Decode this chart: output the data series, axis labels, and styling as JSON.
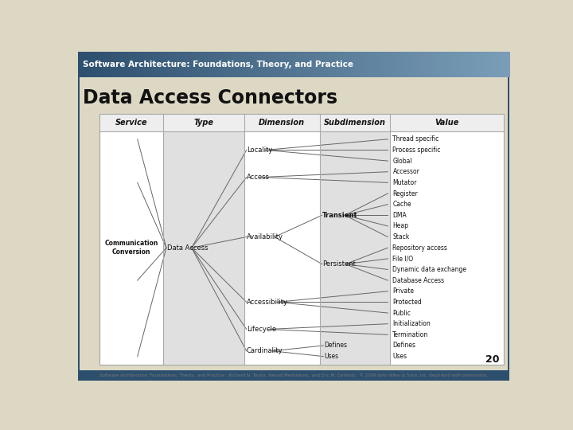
{
  "title_bar_text": "Software Architecture: Foundations, Theory, and Practice",
  "title_bar_color_left": "#2d4f6e",
  "title_bar_color_right": "#7a9db8",
  "slide_title": "Data Access Connectors",
  "bg_color": "#ddd8c4",
  "page_number": "20",
  "footer_text": "Software Architecture: Foundations, Theory, and Practice : Richard N. Taylor, Nenad Medvidovic, and Eric M. Dashofy:  © 2009 John Wiley & Sons, Inc. Reprinted with permission.",
  "headers": [
    "Service",
    "Type",
    "Dimension",
    "Subdimension",
    "Value"
  ],
  "leaf_labels": [
    "Thread specific",
    "Process specific",
    "Global",
    "Accessor",
    "Mutator",
    "Register",
    "Cache",
    "DMA",
    "Heap",
    "Stack",
    "Repository access",
    "File I/O",
    "Dynamic data exchange",
    "Database Access",
    "Private",
    "Protected",
    "Public",
    "Initialization",
    "Termination",
    "Defines",
    "Uses"
  ],
  "locality_idx": [
    0,
    1,
    2
  ],
  "access_idx": [
    3,
    4
  ],
  "transient_idx": [
    5,
    6,
    7,
    8,
    9
  ],
  "persistent_idx": [
    10,
    11,
    12,
    13
  ],
  "accessibility_idx": [
    14,
    15,
    16
  ],
  "lifecycle_idx": [
    17,
    18
  ],
  "cardinality_idx": [
    19,
    20
  ],
  "line_color": "#666666",
  "text_color": "#111111"
}
